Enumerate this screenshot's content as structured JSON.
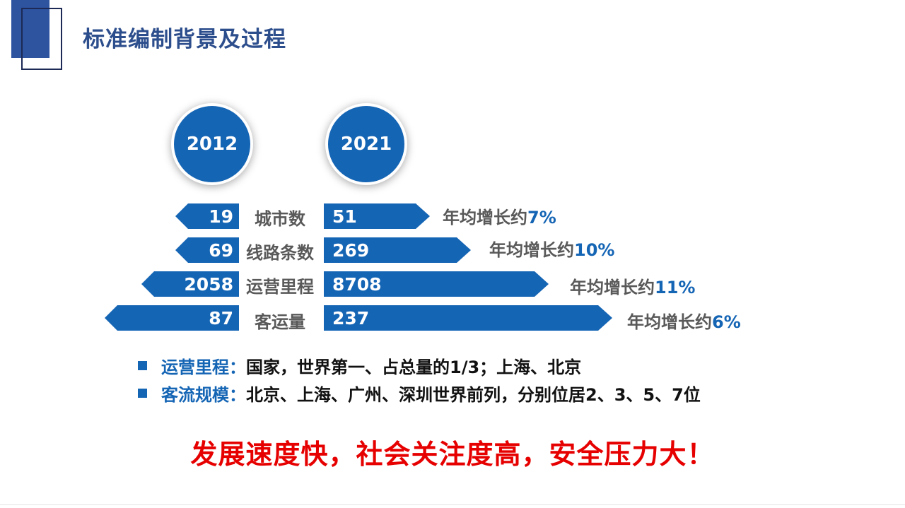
{
  "title": "标准编制背景及过程",
  "years": {
    "left": "2012",
    "right": "2021"
  },
  "rows": [
    {
      "label": "城市数",
      "v2012": "19",
      "v2021": "51",
      "growth_prefix": "年均增长约",
      "growth_pct": "7%"
    },
    {
      "label": "线路条数",
      "v2012": "69",
      "v2021": "269",
      "growth_prefix": "年均增长约",
      "growth_pct": "10%"
    },
    {
      "label": "运营里程",
      "v2012": "2058",
      "v2021": "8708",
      "growth_prefix": "年均增长约",
      "growth_pct": "11%"
    },
    {
      "label": "客运量",
      "v2012": "87",
      "v2021": "237",
      "growth_prefix": "年均增长约",
      "growth_pct": "6%"
    }
  ],
  "bullets": [
    {
      "key": "运营里程：",
      "text": "国家，世界第一、占总量的1/3；上海、北京"
    },
    {
      "key": "客流规模：",
      "text": "北京、上海、广州、深圳世界前列，分别位居2、3、5、7位"
    }
  ],
  "slogan": "发展速度快，社会关注度高，安全压力大！",
  "colors": {
    "accent_blue": "#1565b5",
    "title_blue": "#2d4e8c",
    "slogan_red": "#e60000",
    "label_gray": "#595959"
  }
}
